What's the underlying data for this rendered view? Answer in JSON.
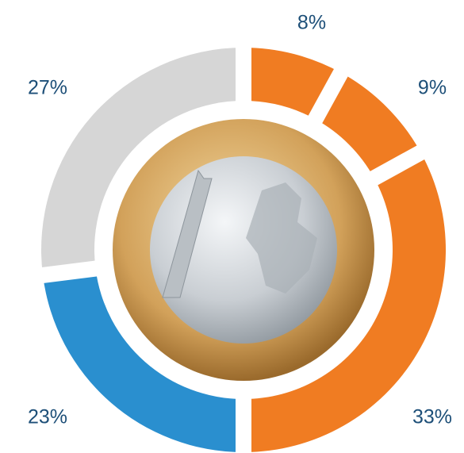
{
  "chart_data": {
    "type": "donut",
    "values": [
      8,
      9,
      33,
      23,
      27
    ],
    "value_labels": [
      "8%",
      "9%",
      "33%",
      "23%",
      "27%"
    ],
    "colors": [
      "#f07c22",
      "#f07c22",
      "#f07c22",
      "#2a8fcf",
      "#d6d6d6"
    ]
  }
}
